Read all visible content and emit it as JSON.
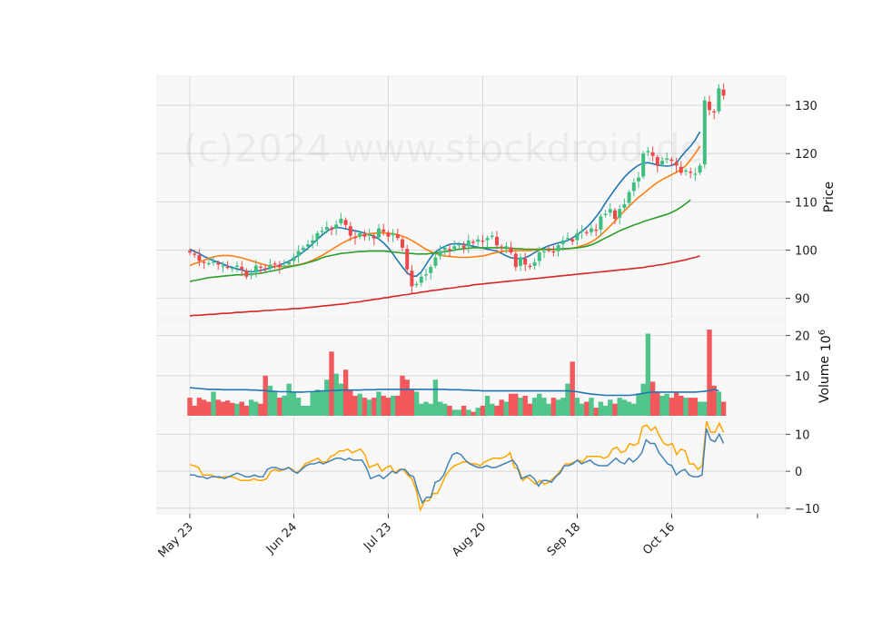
{
  "chart_data": [
    {
      "type": "candlestick",
      "panel": "price",
      "ylabel": "Price",
      "yticks": [
        90,
        100,
        110,
        120,
        130
      ],
      "ylim": [
        86,
        136
      ],
      "watermark": "(c)2024 www.stockdroid.de",
      "x_tick_labels": [
        "May 23",
        "Jun 24",
        "Jul 23",
        "Aug 20",
        "Sep 18",
        "Oct 16"
      ],
      "x_tick_index": [
        0,
        22,
        42,
        62,
        82,
        102
      ],
      "colors": {
        "up": "#3fbf7f",
        "down": "#f0474a"
      },
      "closes": [
        99.5,
        99.2,
        97.8,
        97.5,
        97.3,
        97.6,
        97.0,
        96.8,
        96.5,
        96.3,
        96.8,
        96.0,
        94.5,
        95.2,
        96.8,
        96.5,
        96.0,
        97.0,
        97.2,
        96.5,
        96.8,
        97.5,
        98.5,
        99.8,
        100.5,
        101.2,
        102.0,
        103.5,
        104.0,
        104.8,
        104.2,
        105.3,
        106.5,
        105.2,
        103.0,
        102.5,
        103.5,
        102.8,
        103.2,
        102.4,
        104.5,
        103.8,
        102.8,
        103.5,
        102.5,
        100.5,
        96.0,
        92.5,
        93.0,
        94.5,
        95.0,
        96.5,
        98.5,
        99.8,
        100.5,
        100.0,
        100.8,
        101.2,
        100.5,
        102.0,
        101.5,
        102.2,
        101.8,
        102.5,
        103.0,
        101.0,
        100.5,
        100.8,
        99.5,
        96.5,
        98.5,
        97.0,
        96.5,
        97.5,
        99.5,
        99.8,
        100.0,
        99.5,
        101.0,
        102.0,
        102.5,
        101.8,
        103.5,
        104.0,
        103.5,
        104.5,
        104.0,
        107.0,
        107.5,
        108.5,
        106.5,
        108.5,
        109.5,
        112.0,
        114.0,
        115.0,
        120.0,
        120.5,
        119.5,
        117.5,
        118.5,
        119.0,
        118.5,
        117.5,
        116.0,
        116.5,
        116.0,
        115.8,
        117.5,
        131.0,
        129.0,
        128.5,
        133.5,
        132.0
      ],
      "series": [
        {
          "name": "MA10",
          "color": "#1f77b4",
          "values": [
            100.2,
            99.7,
            99.3,
            98.7,
            98.3,
            97.8,
            97.5,
            97.1,
            96.7,
            96.4,
            96.1,
            95.9,
            95.6,
            95.5,
            95.6,
            95.8,
            96.0,
            96.3,
            96.6,
            96.9,
            97.3,
            97.7,
            98.3,
            98.9,
            99.6,
            100.4,
            101.3,
            102.2,
            103.1,
            103.9,
            104.5,
            104.7,
            104.6,
            104.4,
            104.2,
            104.0,
            103.8,
            103.5,
            103.2,
            102.9,
            102.3,
            101.5,
            100.5,
            99.2,
            97.8,
            96.5,
            95.3,
            94.6,
            94.6,
            95.5,
            97.0,
            98.5,
            99.6,
            100.3,
            100.8,
            101.2,
            101.3,
            101.3,
            101.2,
            101.0,
            100.8,
            100.6,
            100.4,
            100.2,
            100.0,
            99.8,
            99.3,
            98.8,
            98.4,
            98.3,
            98.2,
            98.4,
            98.9,
            99.5,
            100.0,
            100.5,
            100.9,
            101.2,
            101.5,
            101.7,
            102.0,
            102.5,
            103.2,
            103.9,
            104.7,
            105.7,
            106.9,
            108.2,
            109.8,
            111.2,
            112.6,
            113.9,
            115.1,
            116.1,
            116.9,
            117.6,
            118.0,
            118.1,
            117.9,
            117.6,
            117.5,
            117.4,
            117.5,
            118.0,
            119.3,
            120.5,
            121.5,
            122.8,
            124.5
          ]
        },
        {
          "name": "MA20",
          "color": "#ff7f0e",
          "values": [
            96.8,
            97.2,
            97.5,
            97.9,
            98.3,
            98.6,
            98.8,
            98.9,
            98.9,
            98.8,
            98.6,
            98.4,
            98.1,
            97.8,
            97.5,
            97.2,
            96.9,
            96.7,
            96.6,
            96.6,
            96.6,
            96.7,
            96.8,
            97.0,
            97.2,
            97.5,
            97.9,
            98.4,
            98.9,
            99.5,
            100.1,
            100.7,
            101.3,
            101.8,
            102.3,
            102.7,
            103.0,
            103.2,
            103.4,
            103.5,
            103.6,
            103.6,
            103.5,
            103.4,
            103.2,
            102.9,
            102.5,
            102.0,
            101.4,
            100.8,
            100.2,
            99.7,
            99.3,
            99.0,
            98.8,
            98.7,
            98.6,
            98.5,
            98.5,
            98.5,
            98.6,
            98.7,
            98.8,
            99.0,
            99.3,
            99.5,
            99.7,
            99.8,
            99.9,
            99.9,
            99.9,
            99.9,
            99.9,
            100.0,
            100.0,
            100.1,
            100.1,
            100.1,
            100.2,
            100.2,
            100.3,
            100.4,
            100.6,
            100.9,
            101.2,
            101.7,
            102.3,
            103.1,
            104.0,
            105.0,
            106.0,
            107.1,
            108.1,
            109.1,
            110.0,
            110.9,
            111.7,
            112.5,
            113.3,
            114.0,
            114.6,
            115.1,
            115.6,
            116.1,
            116.7,
            117.5,
            118.7,
            120.0,
            121.5
          ]
        },
        {
          "name": "MA50",
          "color": "#2ca02c",
          "values": [
            93.5,
            93.7,
            93.9,
            94.1,
            94.3,
            94.4,
            94.5,
            94.6,
            94.7,
            94.8,
            94.9,
            94.9,
            95.0,
            95.0,
            95.1,
            95.2,
            95.4,
            95.6,
            95.8,
            96.0,
            96.3,
            96.5,
            96.7,
            96.9,
            97.1,
            97.4,
            97.7,
            98.0,
            98.4,
            98.7,
            98.9,
            99.1,
            99.3,
            99.4,
            99.5,
            99.6,
            99.7,
            99.7,
            99.8,
            99.8,
            99.8,
            99.8,
            99.7,
            99.6,
            99.5,
            99.4,
            99.3,
            99.3,
            99.2,
            99.2,
            99.2,
            99.3,
            99.4,
            99.5,
            99.7,
            99.8,
            100.0,
            100.2,
            100.3,
            100.4,
            100.5,
            100.5,
            100.5,
            100.5,
            100.5,
            100.5,
            100.5,
            100.4,
            100.4,
            100.3,
            100.3,
            100.2,
            100.2,
            100.2,
            100.2,
            100.2,
            100.2,
            100.2,
            100.2,
            100.3,
            100.3,
            100.4,
            100.5,
            100.6,
            100.8,
            101.1,
            101.5,
            102.0,
            102.5,
            103.0,
            103.5,
            104.0,
            104.4,
            104.8,
            105.2,
            105.5,
            105.9,
            106.2,
            106.5,
            106.8,
            107.1,
            107.4,
            107.8,
            108.3,
            108.9,
            109.6,
            110.4
          ]
        },
        {
          "name": "MA200",
          "color": "#d62728",
          "values": [
            86.4,
            86.5,
            86.5,
            86.6,
            86.7,
            86.7,
            86.8,
            86.9,
            86.9,
            87.0,
            87.1,
            87.1,
            87.2,
            87.3,
            87.3,
            87.4,
            87.5,
            87.5,
            87.6,
            87.7,
            87.7,
            87.8,
            87.9,
            87.9,
            88.0,
            88.1,
            88.2,
            88.3,
            88.4,
            88.5,
            88.6,
            88.7,
            88.8,
            88.9,
            89.1,
            89.2,
            89.3,
            89.5,
            89.6,
            89.8,
            89.9,
            90.1,
            90.2,
            90.4,
            90.5,
            90.7,
            90.8,
            91.0,
            91.1,
            91.3,
            91.4,
            91.6,
            91.7,
            91.8,
            92.0,
            92.1,
            92.2,
            92.4,
            92.5,
            92.6,
            92.8,
            92.9,
            93.0,
            93.1,
            93.2,
            93.3,
            93.4,
            93.5,
            93.6,
            93.7,
            93.8,
            93.9,
            94.0,
            94.1,
            94.2,
            94.3,
            94.4,
            94.5,
            94.6,
            94.7,
            94.8,
            94.9,
            95.0,
            95.1,
            95.2,
            95.3,
            95.4,
            95.5,
            95.6,
            95.7,
            95.8,
            95.9,
            96.0,
            96.1,
            96.2,
            96.3,
            96.4,
            96.6,
            96.7,
            96.9,
            97.0,
            97.2,
            97.4,
            97.6,
            97.8,
            98.0,
            98.3,
            98.5,
            98.8
          ]
        }
      ]
    },
    {
      "type": "bar",
      "panel": "volume",
      "ylabel": "Volume",
      "scale_label": "10^6",
      "scale_base": "10",
      "scale_exp": "6",
      "yticks": [
        10,
        20
      ],
      "ylim": [
        0,
        24
      ],
      "values": [
        4.5,
        2.5,
        4.5,
        4.0,
        3.5,
        6.0,
        4.0,
        3.5,
        3.8,
        3.2,
        3.0,
        3.5,
        2.5,
        4.0,
        3.5,
        3.0,
        10.0,
        7.5,
        6.0,
        4.5,
        5.0,
        8.0,
        6.0,
        4.5,
        2.5,
        2.5,
        6.0,
        6.5,
        6.0,
        9.0,
        16.0,
        10.5,
        8.0,
        11.5,
        6.5,
        5.0,
        5.5,
        4.5,
        4.0,
        4.5,
        6.0,
        5.0,
        4.5,
        5.0,
        5.0,
        10.0,
        9.0,
        6.5,
        6.0,
        3.0,
        3.5,
        3.0,
        9.0,
        3.5,
        3.0,
        2.5,
        1.5,
        1.5,
        2.5,
        1.5,
        1.0,
        2.0,
        2.5,
        5.0,
        3.0,
        2.5,
        4.0,
        3.5,
        5.5,
        5.5,
        4.5,
        5.0,
        3.0,
        4.5,
        5.5,
        4.5,
        3.0,
        4.5,
        4.0,
        4.5,
        8.0,
        13.5,
        4.5,
        3.0,
        3.5,
        4.5,
        2.0,
        3.5,
        2.5,
        4.0,
        3.0,
        4.5,
        4.0,
        3.5,
        3.0,
        5.5,
        8.0,
        20.5,
        8.5,
        6.0,
        5.0,
        5.5,
        4.5,
        6.0,
        5.0,
        4.5,
        4.5,
        4.5,
        3.5,
        3.5,
        21.5,
        7.5,
        6.0,
        3.5
      ],
      "series": [
        {
          "name": "volume-ma",
          "color": "#1f77b4",
          "values": [
            7.0,
            6.9,
            6.8,
            6.7,
            6.6,
            6.6,
            6.6,
            6.5,
            6.5,
            6.5,
            6.5,
            6.5,
            6.5,
            6.4,
            6.4,
            6.3,
            6.3,
            6.1,
            6.1,
            6.0,
            6.0,
            6.0,
            5.9,
            5.9,
            5.9,
            6.0,
            6.0,
            6.1,
            6.2,
            6.2,
            6.3,
            6.3,
            6.4,
            6.4,
            6.4,
            6.4,
            6.4,
            6.5,
            6.5,
            6.5,
            6.6,
            6.6,
            6.6,
            6.6,
            6.6,
            6.6,
            6.6,
            6.6,
            6.6,
            6.6,
            6.6,
            6.6,
            6.6,
            6.6,
            6.6,
            6.5,
            6.5,
            6.5,
            6.4,
            6.4,
            6.3,
            6.3,
            6.2,
            6.2,
            6.2,
            6.2,
            6.2,
            6.2,
            6.2,
            6.2,
            6.2,
            6.2,
            6.2,
            6.2,
            6.2,
            6.2,
            6.2,
            6.2,
            6.2,
            6.2,
            6.2,
            6.1,
            6.0,
            5.8,
            5.6,
            5.4,
            5.3,
            5.2,
            5.1,
            5.1,
            5.1,
            5.1,
            5.1,
            5.1,
            5.2,
            5.4,
            5.6,
            5.8,
            5.9,
            5.9,
            5.9,
            5.9,
            5.9,
            5.9,
            5.9,
            5.9,
            5.9,
            5.9,
            6.0,
            6.1,
            6.3,
            6.6,
            6.2
          ]
        }
      ]
    },
    {
      "type": "line",
      "panel": "indicator",
      "yticks": [
        -10,
        0,
        10
      ],
      "ylim": [
        -11.5,
        14.5
      ],
      "series": [
        {
          "name": "fast",
          "color": "#ffa500",
          "values": [
            1.8,
            1.5,
            1.0,
            -1.0,
            -1.0,
            -1.0,
            -1.5,
            -1.8,
            -1.5,
            -1.5,
            -1.5,
            -2.0,
            -2.5,
            -2.5,
            -2.5,
            -2.0,
            -2.5,
            -2.5,
            -2.0,
            0.0,
            0.5,
            0.0,
            0.5,
            1.0,
            0.5,
            -0.5,
            0.5,
            2.0,
            2.5,
            3.0,
            3.5,
            2.5,
            2.5,
            4.0,
            4.5,
            5.5,
            5.5,
            6.0,
            5.0,
            5.5,
            6.0,
            4.5,
            1.0,
            1.5,
            2.0,
            0.0,
            1.0,
            1.5,
            -0.5,
            0.5,
            0.5,
            -1.0,
            -2.0,
            -5.0,
            -10.5,
            -8.0,
            -8.0,
            -6.0,
            -6.0,
            -3.5,
            -1.0,
            0.5,
            1.5,
            2.0,
            2.5,
            2.5,
            2.0,
            2.0,
            1.5,
            2.5,
            3.0,
            3.5,
            3.5,
            3.5,
            4.0,
            5.0,
            1.0,
            0.5,
            -2.5,
            -1.5,
            -2.5,
            -3.5,
            -2.5,
            -3.5,
            -3.0,
            -2.0,
            -1.0,
            0.5,
            2.0,
            2.0,
            2.5,
            3.0,
            2.5,
            4.0,
            4.0,
            4.0,
            4.0,
            3.5,
            4.0,
            6.0,
            6.5,
            5.0,
            5.5,
            7.5,
            7.0,
            7.5,
            12.0,
            12.5,
            11.0,
            12.0,
            9.5,
            7.5,
            7.0,
            7.5,
            4.5,
            6.0,
            5.5,
            2.0,
            2.0,
            0.5,
            1.5,
            13.5,
            10.5,
            10.5,
            13.0,
            10.5
          ]
        },
        {
          "name": "slow",
          "color": "#4682b4",
          "values": [
            -1.0,
            -1.0,
            -1.5,
            -1.5,
            -2.0,
            -1.5,
            -1.5,
            -1.5,
            -2.0,
            -1.5,
            -1.0,
            -0.5,
            -1.0,
            -1.5,
            -1.5,
            -1.0,
            -1.5,
            -1.5,
            0.5,
            1.0,
            1.0,
            0.5,
            0.5,
            1.0,
            0.0,
            -0.5,
            0.5,
            1.5,
            2.0,
            2.0,
            2.5,
            2.0,
            2.5,
            3.0,
            3.5,
            3.5,
            3.0,
            3.5,
            3.0,
            3.0,
            3.0,
            1.0,
            -2.0,
            -1.5,
            -1.0,
            -2.0,
            -1.0,
            0.0,
            -0.5,
            0.5,
            0.5,
            -1.0,
            -1.5,
            -5.5,
            -8.5,
            -7.0,
            -7.0,
            -3.0,
            -2.5,
            -1.0,
            2.0,
            4.5,
            5.0,
            4.5,
            3.0,
            2.0,
            1.5,
            1.0,
            1.0,
            1.5,
            1.0,
            1.0,
            1.5,
            2.0,
            2.5,
            3.0,
            1.5,
            -2.0,
            -1.5,
            -1.0,
            -2.0,
            -4.0,
            -2.5,
            -2.5,
            -3.0,
            -1.5,
            -0.5,
            1.5,
            1.5,
            2.0,
            3.0,
            2.0,
            2.5,
            3.0,
            2.0,
            1.5,
            1.5,
            1.5,
            2.5,
            3.5,
            2.5,
            2.0,
            3.5,
            2.5,
            3.5,
            5.0,
            8.5,
            7.5,
            7.5,
            5.0,
            3.5,
            2.0,
            1.5,
            -1.0,
            0.0,
            0.5,
            -1.0,
            -1.5,
            -1.5,
            -1.0,
            11.5,
            8.5,
            8.0,
            10.0,
            7.5
          ]
        }
      ]
    }
  ]
}
